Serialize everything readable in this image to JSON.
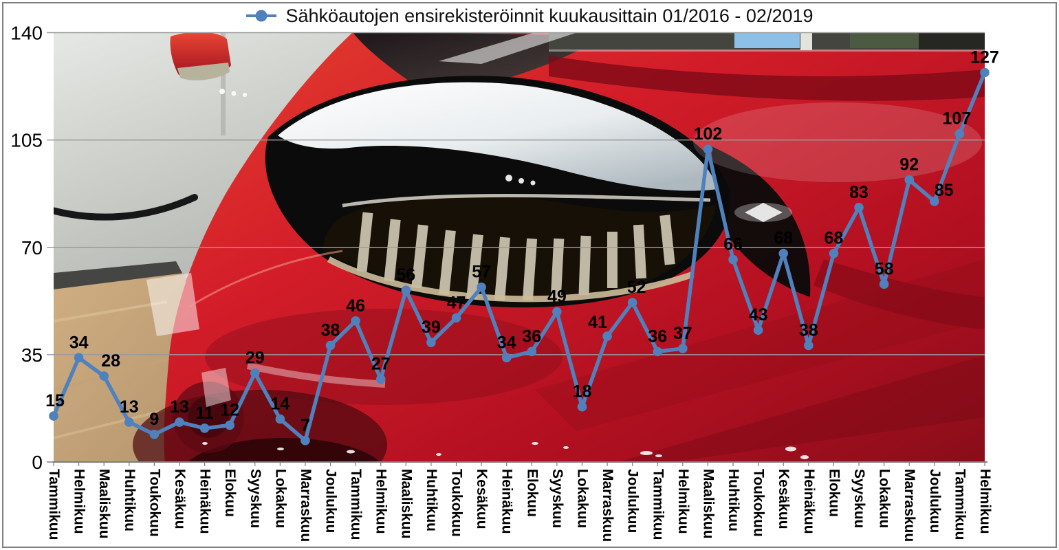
{
  "frame": {
    "border_color": "#7f7f7f",
    "background_color": "#ffffff"
  },
  "legend": {
    "marker": "circle-on-line",
    "marker_color": "#4F81BD",
    "position": "top"
  },
  "chart_data": {
    "type": "line",
    "title": "Sähköautojen ensirekisteröinnit kuukausittain 01/2016 - 02/2019",
    "period": "01/2016 - 02/2019",
    "categories": [
      "Tammikuu",
      "Helmikuu",
      "Maaliskuu",
      "Huhtikuu",
      "Toukokuu",
      "Kesäkuu",
      "Heinäkuu",
      "Elokuu",
      "Syyskuu",
      "Lokakuu",
      "Marraskuu",
      "Joulukuu",
      "Tammikuu",
      "Helmikuu",
      "Maaliskuu",
      "Huhtikuu",
      "Toukokuu",
      "Kesäkuu",
      "Heinäkuu",
      "Elokuu",
      "Syyskuu",
      "Lokakuu",
      "Marraskuu",
      "Joulukuu",
      "Tammikuu",
      "Helmikuu",
      "Maaliskuu",
      "Huhtikuu",
      "Toukokuu",
      "Kesäkuu",
      "Heinäkuu",
      "Elokuu",
      "Syyskuu",
      "Lokakuu",
      "Marraskuu",
      "Joulukuu",
      "Tammikuu",
      "Helmikuu"
    ],
    "values": [
      15,
      34,
      28,
      13,
      9,
      13,
      11,
      12,
      29,
      14,
      7,
      38,
      46,
      27,
      56,
      39,
      47,
      57,
      34,
      36,
      49,
      18,
      41,
      52,
      36,
      37,
      102,
      66,
      43,
      68,
      38,
      68,
      83,
      58,
      92,
      85,
      107,
      127
    ],
    "ylim": [
      0,
      140
    ],
    "yticks": [
      0,
      35,
      70,
      105,
      140
    ],
    "grid": true,
    "gridline_color": "#9a9a9a",
    "axis_color": "#7f7f7f",
    "line_color": "#4F81BD",
    "marker": "circle",
    "data_label_color": "#000000",
    "tick_label_color": "#000000",
    "legend_position": "top",
    "background_description": "photo of a red Tesla Model 3 front quarter with large headlight, grey showroom wall, wooden floor and black rope barrier"
  }
}
